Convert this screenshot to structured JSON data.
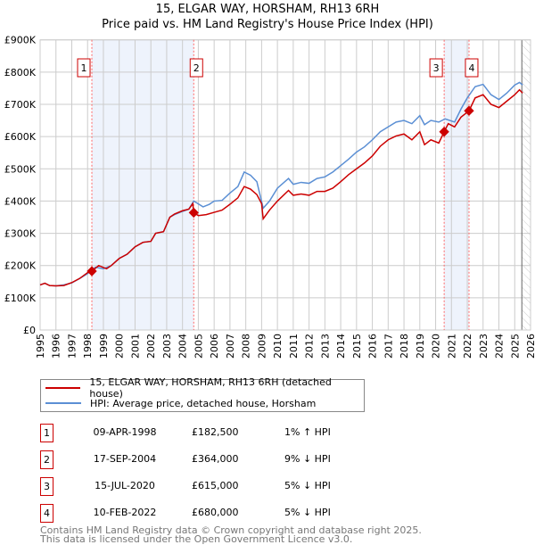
{
  "chart_data": {
    "type": "line",
    "title": "15, ELGAR WAY, HORSHAM, RH13 6RH",
    "subtitle": "Price paid vs. HM Land Registry's House Price Index (HPI)",
    "xlim": [
      1995,
      2026
    ],
    "ylim": [
      0,
      900000
    ],
    "x_ticks": [
      "1995",
      "1996",
      "1997",
      "1998",
      "1999",
      "2000",
      "2001",
      "2002",
      "2003",
      "2004",
      "2005",
      "2006",
      "2007",
      "2008",
      "2009",
      "2010",
      "2011",
      "2012",
      "2013",
      "2014",
      "2015",
      "2016",
      "2017",
      "2018",
      "2019",
      "2020",
      "2021",
      "2022",
      "2023",
      "2024",
      "2025",
      "2026"
    ],
    "y_ticks": [
      {
        "v": 0,
        "label": "£0"
      },
      {
        "v": 100000,
        "label": "£100K"
      },
      {
        "v": 200000,
        "label": "£200K"
      },
      {
        "v": 300000,
        "label": "£300K"
      },
      {
        "v": 400000,
        "label": "£400K"
      },
      {
        "v": 500000,
        "label": "£500K"
      },
      {
        "v": 600000,
        "label": "£600K"
      },
      {
        "v": 700000,
        "label": "£700K"
      },
      {
        "v": 800000,
        "label": "£800K"
      },
      {
        "v": 900000,
        "label": "£900K"
      }
    ],
    "grid": true,
    "colors": {
      "property": "#cc0000",
      "hpi": "#5b8fd4",
      "shade": "#eef3fc",
      "marker_line": "#ff6666"
    },
    "series": [
      {
        "name": "15, ELGAR WAY, HORSHAM, RH13 6RH (detached house)",
        "points": [
          [
            1995,
            140000
          ],
          [
            1995.3,
            145000
          ],
          [
            1995.6,
            138000
          ],
          [
            1996,
            137000
          ],
          [
            1996.5,
            138000
          ],
          [
            1997,
            147000
          ],
          [
            1997.5,
            160000
          ],
          [
            1998,
            178000
          ],
          [
            1998.27,
            182500
          ],
          [
            1998.7,
            200000
          ],
          [
            1999.2,
            190000
          ],
          [
            1999.5,
            200000
          ],
          [
            2000,
            222000
          ],
          [
            2000.5,
            235000
          ],
          [
            2001,
            258000
          ],
          [
            2001.5,
            272000
          ],
          [
            2002,
            275000
          ],
          [
            2002.3,
            300000
          ],
          [
            2002.8,
            305000
          ],
          [
            2003.2,
            350000
          ],
          [
            2003.5,
            360000
          ],
          [
            2004,
            370000
          ],
          [
            2004.4,
            375000
          ],
          [
            2004.65,
            392000
          ],
          [
            2004.71,
            364000
          ],
          [
            2005,
            355000
          ],
          [
            2005.5,
            358000
          ],
          [
            2006,
            365000
          ],
          [
            2006.5,
            372000
          ],
          [
            2007,
            390000
          ],
          [
            2007.5,
            410000
          ],
          [
            2007.9,
            445000
          ],
          [
            2008.3,
            437000
          ],
          [
            2008.7,
            420000
          ],
          [
            2009,
            392000
          ],
          [
            2009.1,
            345000
          ],
          [
            2009.5,
            372000
          ],
          [
            2010,
            400000
          ],
          [
            2010.7,
            433000
          ],
          [
            2011,
            418000
          ],
          [
            2011.5,
            422000
          ],
          [
            2012,
            418000
          ],
          [
            2012.5,
            430000
          ],
          [
            2013,
            430000
          ],
          [
            2013.5,
            440000
          ],
          [
            2014,
            460000
          ],
          [
            2014.5,
            482000
          ],
          [
            2015,
            500000
          ],
          [
            2015.5,
            518000
          ],
          [
            2016,
            540000
          ],
          [
            2016.5,
            570000
          ],
          [
            2017,
            590000
          ],
          [
            2017.5,
            602000
          ],
          [
            2018,
            608000
          ],
          [
            2018.5,
            590000
          ],
          [
            2019,
            615000
          ],
          [
            2019.3,
            575000
          ],
          [
            2019.7,
            590000
          ],
          [
            2020.2,
            580000
          ],
          [
            2020.54,
            615000
          ],
          [
            2020.8,
            640000
          ],
          [
            2021.2,
            630000
          ],
          [
            2021.6,
            660000
          ],
          [
            2022.11,
            680000
          ],
          [
            2022.5,
            720000
          ],
          [
            2023,
            730000
          ],
          [
            2023.5,
            700000
          ],
          [
            2024,
            690000
          ],
          [
            2024.5,
            710000
          ],
          [
            2025,
            730000
          ],
          [
            2025.3,
            745000
          ],
          [
            2025.5,
            735000
          ]
        ]
      },
      {
        "name": "HPI: Average price, detached house, Horsham",
        "points": [
          [
            1995,
            140000
          ],
          [
            1995.3,
            145000
          ],
          [
            1995.6,
            138000
          ],
          [
            1996,
            137000
          ],
          [
            1996.5,
            140000
          ],
          [
            1997,
            146000
          ],
          [
            1997.5,
            160000
          ],
          [
            1998,
            175000
          ],
          [
            1998.5,
            195000
          ],
          [
            1999,
            190000
          ],
          [
            1999.5,
            200000
          ],
          [
            2000,
            222000
          ],
          [
            2000.5,
            235000
          ],
          [
            2001,
            258000
          ],
          [
            2001.5,
            272000
          ],
          [
            2002,
            275000
          ],
          [
            2002.3,
            300000
          ],
          [
            2002.8,
            305000
          ],
          [
            2003.2,
            350000
          ],
          [
            2003.5,
            358000
          ],
          [
            2004,
            368000
          ],
          [
            2004.4,
            375000
          ],
          [
            2004.71,
            400000
          ],
          [
            2005.3,
            382000
          ],
          [
            2005.7,
            390000
          ],
          [
            2006,
            400000
          ],
          [
            2006.5,
            402000
          ],
          [
            2007,
            425000
          ],
          [
            2007.5,
            445000
          ],
          [
            2007.9,
            490000
          ],
          [
            2008.3,
            480000
          ],
          [
            2008.7,
            460000
          ],
          [
            2009.1,
            378000
          ],
          [
            2009.5,
            400000
          ],
          [
            2010,
            440000
          ],
          [
            2010.7,
            470000
          ],
          [
            2011,
            452000
          ],
          [
            2011.5,
            458000
          ],
          [
            2012,
            455000
          ],
          [
            2012.5,
            470000
          ],
          [
            2013,
            475000
          ],
          [
            2013.5,
            490000
          ],
          [
            2014,
            510000
          ],
          [
            2014.5,
            530000
          ],
          [
            2015,
            552000
          ],
          [
            2015.5,
            568000
          ],
          [
            2016,
            590000
          ],
          [
            2016.5,
            615000
          ],
          [
            2017,
            630000
          ],
          [
            2017.5,
            645000
          ],
          [
            2018,
            650000
          ],
          [
            2018.5,
            640000
          ],
          [
            2019,
            665000
          ],
          [
            2019.3,
            637000
          ],
          [
            2019.7,
            650000
          ],
          [
            2020.2,
            645000
          ],
          [
            2020.6,
            655000
          ],
          [
            2021.2,
            645000
          ],
          [
            2021.6,
            685000
          ],
          [
            2022,
            720000
          ],
          [
            2022.5,
            755000
          ],
          [
            2023,
            762000
          ],
          [
            2023.5,
            730000
          ],
          [
            2024,
            715000
          ],
          [
            2024.5,
            735000
          ],
          [
            2025,
            760000
          ],
          [
            2025.3,
            768000
          ],
          [
            2025.5,
            760000
          ]
        ]
      }
    ],
    "sales": [
      {
        "id": "1",
        "year": 1998.27,
        "price": 182500,
        "date": "09-APR-1998",
        "price_label": "£182,500",
        "hpi_diff": "1% ↑ HPI"
      },
      {
        "id": "2",
        "year": 2004.71,
        "price": 364000,
        "date": "17-SEP-2004",
        "price_label": "£364,000",
        "hpi_diff": "9% ↓ HPI"
      },
      {
        "id": "3",
        "year": 2020.54,
        "price": 615000,
        "date": "15-JUL-2020",
        "price_label": "£615,000",
        "hpi_diff": "5% ↓ HPI"
      },
      {
        "id": "4",
        "year": 2022.11,
        "price": 680000,
        "date": "10-FEB-2022",
        "price_label": "£680,000",
        "hpi_diff": "5% ↓ HPI"
      }
    ],
    "shaded_ranges": [
      [
        1998.27,
        2004.71
      ],
      [
        2020.54,
        2022.11
      ]
    ],
    "forecast_hatch_from": 2025.45
  },
  "footer": {
    "line1": "Contains HM Land Registry data © Crown copyright and database right 2025.",
    "line2": "This data is licensed under the Open Government Licence v3.0."
  }
}
